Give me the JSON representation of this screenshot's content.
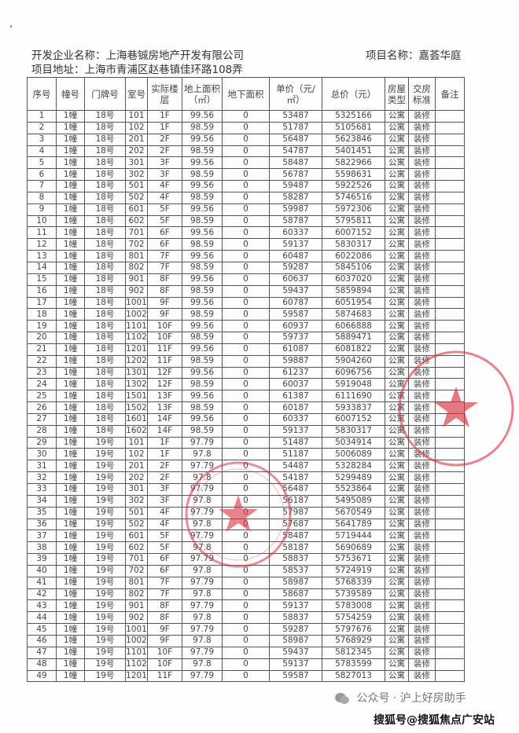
{
  "header": {
    "developer": "开发企业名称：上海巷铖房地产开发有限公司",
    "address": "项目地址：上海市青浦区赵巷镇佳环路108弄",
    "project": "项目名称：嘉荟华庭"
  },
  "table": {
    "columns": [
      "序号",
      "幢号",
      "门牌号",
      "室号",
      "实际楼层",
      "地上面积（㎡）",
      "地下面积",
      "单价（元/㎡）",
      "总价（元）",
      "房屋类型",
      "交房标准",
      "备注"
    ],
    "rows": [
      [
        "1",
        "1幢",
        "18号",
        "101",
        "1F",
        "99.56",
        "0",
        "53487",
        "5325166",
        "公寓",
        "装修",
        ""
      ],
      [
        "2",
        "1幢",
        "18号",
        "102",
        "1F",
        "98.59",
        "0",
        "51787",
        "5105681",
        "公寓",
        "装修",
        ""
      ],
      [
        "3",
        "1幢",
        "18号",
        "201",
        "2F",
        "99.56",
        "0",
        "56487",
        "5623846",
        "公寓",
        "装修",
        ""
      ],
      [
        "4",
        "1幢",
        "18号",
        "202",
        "2F",
        "98.59",
        "0",
        "54787",
        "5401451",
        "公寓",
        "装修",
        ""
      ],
      [
        "5",
        "1幢",
        "18号",
        "301",
        "3F",
        "99.56",
        "0",
        "58487",
        "5822966",
        "公寓",
        "装修",
        ""
      ],
      [
        "6",
        "1幢",
        "18号",
        "302",
        "3F",
        "98.59",
        "0",
        "56787",
        "5598631",
        "公寓",
        "装修",
        ""
      ],
      [
        "7",
        "1幢",
        "18号",
        "501",
        "4F",
        "99.56",
        "0",
        "59487",
        "5922526",
        "公寓",
        "装修",
        ""
      ],
      [
        "8",
        "1幢",
        "18号",
        "502",
        "4F",
        "98.59",
        "0",
        "58287",
        "5746516",
        "公寓",
        "装修",
        ""
      ],
      [
        "9",
        "1幢",
        "18号",
        "601",
        "5F",
        "99.56",
        "0",
        "59987",
        "5972306",
        "公寓",
        "装修",
        ""
      ],
      [
        "10",
        "1幢",
        "18号",
        "602",
        "5F",
        "98.59",
        "0",
        "58787",
        "5795811",
        "公寓",
        "装修",
        ""
      ],
      [
        "11",
        "1幢",
        "18号",
        "701",
        "6F",
        "99.56",
        "0",
        "60337",
        "6007152",
        "公寓",
        "装修",
        ""
      ],
      [
        "12",
        "1幢",
        "18号",
        "702",
        "6F",
        "98.59",
        "0",
        "59137",
        "5830317",
        "公寓",
        "装修",
        ""
      ],
      [
        "13",
        "1幢",
        "18号",
        "801",
        "7F",
        "99.56",
        "0",
        "60487",
        "6022086",
        "公寓",
        "装修",
        ""
      ],
      [
        "14",
        "1幢",
        "18号",
        "802",
        "7F",
        "98.59",
        "0",
        "59287",
        "5845106",
        "公寓",
        "装修",
        ""
      ],
      [
        "15",
        "1幢",
        "18号",
        "901",
        "8F",
        "99.56",
        "0",
        "60637",
        "6037020",
        "公寓",
        "装修",
        ""
      ],
      [
        "16",
        "1幢",
        "18号",
        "902",
        "8F",
        "98.59",
        "0",
        "59437",
        "5859894",
        "公寓",
        "装修",
        ""
      ],
      [
        "17",
        "1幢",
        "18号",
        "1001",
        "9F",
        "99.56",
        "0",
        "60787",
        "6051954",
        "公寓",
        "装修",
        ""
      ],
      [
        "18",
        "1幢",
        "18号",
        "1002",
        "9F",
        "98.59",
        "0",
        "59587",
        "5874683",
        "公寓",
        "装修",
        ""
      ],
      [
        "19",
        "1幢",
        "18号",
        "1101",
        "10F",
        "99.56",
        "0",
        "60937",
        "6066888",
        "公寓",
        "装修",
        ""
      ],
      [
        "20",
        "1幢",
        "18号",
        "1102",
        "10F",
        "98.59",
        "0",
        "59737",
        "5889471",
        "公寓",
        "装修",
        ""
      ],
      [
        "21",
        "1幢",
        "18号",
        "1201",
        "11F",
        "99.56",
        "0",
        "61087",
        "6081822",
        "公寓",
        "装修",
        ""
      ],
      [
        "22",
        "1幢",
        "18号",
        "1202",
        "11F",
        "98.59",
        "0",
        "59887",
        "5904260",
        "公寓",
        "装修",
        ""
      ],
      [
        "23",
        "1幢",
        "18号",
        "1301",
        "12F",
        "99.56",
        "0",
        "61237",
        "6096756",
        "公寓",
        "装修",
        ""
      ],
      [
        "24",
        "1幢",
        "18号",
        "1302",
        "12F",
        "98.59",
        "0",
        "60037",
        "5919048",
        "公寓",
        "装修",
        ""
      ],
      [
        "25",
        "1幢",
        "18号",
        "1501",
        "13F",
        "99.56",
        "0",
        "61387",
        "6111690",
        "公寓",
        "装修",
        ""
      ],
      [
        "26",
        "1幢",
        "18号",
        "1502",
        "13F",
        "98.59",
        "0",
        "60187",
        "5933837",
        "公寓",
        "装修",
        ""
      ],
      [
        "27",
        "1幢",
        "18号",
        "1601",
        "14F",
        "99.56",
        "0",
        "60337",
        "6007152",
        "公寓",
        "装修",
        ""
      ],
      [
        "28",
        "1幢",
        "18号",
        "1602",
        "14F",
        "98.59",
        "0",
        "59137",
        "5830317",
        "公寓",
        "装修",
        ""
      ],
      [
        "29",
        "1幢",
        "19号",
        "101",
        "1F",
        "97.79",
        "0",
        "51487",
        "5034914",
        "公寓",
        "装修",
        ""
      ],
      [
        "30",
        "1幢",
        "19号",
        "102",
        "1F",
        "97.8",
        "0",
        "51187",
        "5006089",
        "公寓",
        "装修",
        ""
      ],
      [
        "31",
        "1幢",
        "19号",
        "201",
        "2F",
        "97.79",
        "0",
        "54487",
        "5328284",
        "公寓",
        "装修",
        ""
      ],
      [
        "32",
        "1幢",
        "19号",
        "202",
        "2F",
        "97.8",
        "0",
        "54187",
        "5299489",
        "公寓",
        "装修",
        ""
      ],
      [
        "33",
        "1幢",
        "19号",
        "301",
        "3F",
        "97.79",
        "0",
        "56487",
        "5523864",
        "公寓",
        "装修",
        ""
      ],
      [
        "34",
        "1幢",
        "19号",
        "302",
        "3F",
        "97.8",
        "0",
        "56187",
        "5495089",
        "公寓",
        "装修",
        ""
      ],
      [
        "35",
        "1幢",
        "19号",
        "501",
        "4F",
        "97.79",
        "0",
        "57987",
        "5670549",
        "公寓",
        "装修",
        ""
      ],
      [
        "36",
        "1幢",
        "19号",
        "502",
        "4F",
        "97.8",
        "0",
        "57687",
        "5641789",
        "公寓",
        "装修",
        ""
      ],
      [
        "37",
        "1幢",
        "19号",
        "601",
        "5F",
        "97.79",
        "0",
        "58487",
        "5719444",
        "公寓",
        "装修",
        ""
      ],
      [
        "38",
        "1幢",
        "19号",
        "602",
        "5F",
        "97.8",
        "0",
        "58187",
        "5690689",
        "公寓",
        "装修",
        ""
      ],
      [
        "39",
        "1幢",
        "19号",
        "701",
        "6F",
        "97.79",
        "0",
        "58837",
        "5753671",
        "公寓",
        "装修",
        ""
      ],
      [
        "40",
        "1幢",
        "19号",
        "702",
        "6F",
        "97.8",
        "0",
        "58537",
        "5724919",
        "公寓",
        "装修",
        ""
      ],
      [
        "41",
        "1幢",
        "19号",
        "801",
        "7F",
        "97.79",
        "0",
        "58987",
        "5768339",
        "公寓",
        "装修",
        ""
      ],
      [
        "42",
        "1幢",
        "19号",
        "802",
        "7F",
        "97.8",
        "0",
        "58687",
        "5739589",
        "公寓",
        "装修",
        ""
      ],
      [
        "43",
        "1幢",
        "19号",
        "901",
        "8F",
        "97.79",
        "0",
        "59137",
        "5783008",
        "公寓",
        "装修",
        ""
      ],
      [
        "44",
        "1幢",
        "19号",
        "902",
        "8F",
        "97.8",
        "0",
        "58837",
        "5754259",
        "公寓",
        "装修",
        ""
      ],
      [
        "45",
        "1幢",
        "19号",
        "1001",
        "9F",
        "97.79",
        "0",
        "59287",
        "5797676",
        "公寓",
        "装修",
        ""
      ],
      [
        "46",
        "1幢",
        "19号",
        "1002",
        "9F",
        "97.8",
        "0",
        "58987",
        "5768929",
        "公寓",
        "装修",
        ""
      ],
      [
        "47",
        "1幢",
        "19号",
        "1101",
        "10F",
        "97.79",
        "0",
        "59437",
        "5812345",
        "公寓",
        "装修",
        ""
      ],
      [
        "48",
        "1幢",
        "19号",
        "1102",
        "10F",
        "97.8",
        "0",
        "59137",
        "5783599",
        "公寓",
        "装修",
        ""
      ],
      [
        "49",
        "1幢",
        "19号",
        "1201",
        "11F",
        "97.79",
        "0",
        "59587",
        "5827013",
        "公寓",
        "装修",
        ""
      ]
    ]
  },
  "footer": {
    "wechat": "公众号 · 沪上好房助手",
    "watermark": "搜狐号@搜狐焦点广安站"
  },
  "colors": {
    "stamp": "#d9333f",
    "border": "#555555"
  }
}
